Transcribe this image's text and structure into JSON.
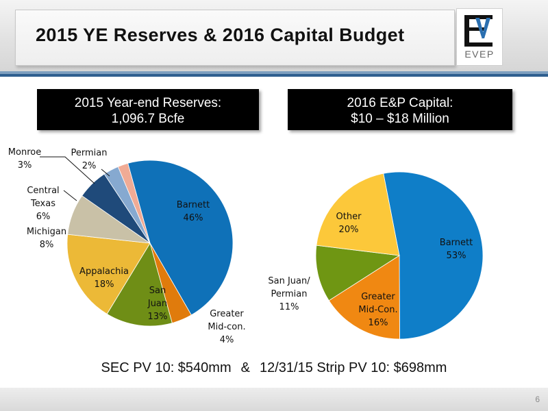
{
  "header": {
    "title": "2015 YE Reserves & 2016 Capital Budget",
    "logo_text": "EVEP"
  },
  "left_box": {
    "line1": "2015 Year-end Reserves:",
    "line2": "1,096.7 Bcfe"
  },
  "right_box": {
    "line1": "2016 E&P Capital:",
    "line2": "$10 – $18 Million"
  },
  "chart_data": [
    {
      "type": "pie",
      "title": "",
      "slices": [
        {
          "label": "Barnett",
          "value": 46,
          "pct_text": "46%",
          "color": "#0f71b8"
        },
        {
          "label": "Greater Mid-con.",
          "value": 4,
          "pct_text": "4%",
          "color": "#e07b0c"
        },
        {
          "label": "San Juan",
          "value": 13,
          "pct_text": "13%",
          "color": "#6f8e16"
        },
        {
          "label": "Appalachia",
          "value": 18,
          "pct_text": "18%",
          "color": "#ecb937"
        },
        {
          "label": "Michigan",
          "value": 8,
          "pct_text": "8%",
          "color": "#c9c1a7"
        },
        {
          "label": "Central Texas",
          "value": 6,
          "pct_text": "6%",
          "color": "#1f4a7a"
        },
        {
          "label": "Monroe",
          "value": 3,
          "pct_text": "3%",
          "color": "#86a9d0"
        },
        {
          "label": "Permian",
          "value": 2,
          "pct_text": "2%",
          "color": "#f0ab95"
        }
      ]
    },
    {
      "type": "pie",
      "title": "",
      "slices": [
        {
          "label": "Barnett",
          "value": 53,
          "pct_text": "53%",
          "color": "#0f7ec8"
        },
        {
          "label": "Greater Mid-Con.",
          "value": 16,
          "pct_text": "16%",
          "color": "#f08812"
        },
        {
          "label": "San Juan/ Permian",
          "value": 11,
          "pct_text": "11%",
          "color": "#6f9613"
        },
        {
          "label": "Other",
          "value": 20,
          "pct_text": "20%",
          "color": "#fcc83a"
        }
      ]
    }
  ],
  "footer": {
    "left": "SEC PV 10: $540mm",
    "amp": "&",
    "right": "12/31/15 Strip PV 10: $698mm"
  },
  "page_number": "6"
}
